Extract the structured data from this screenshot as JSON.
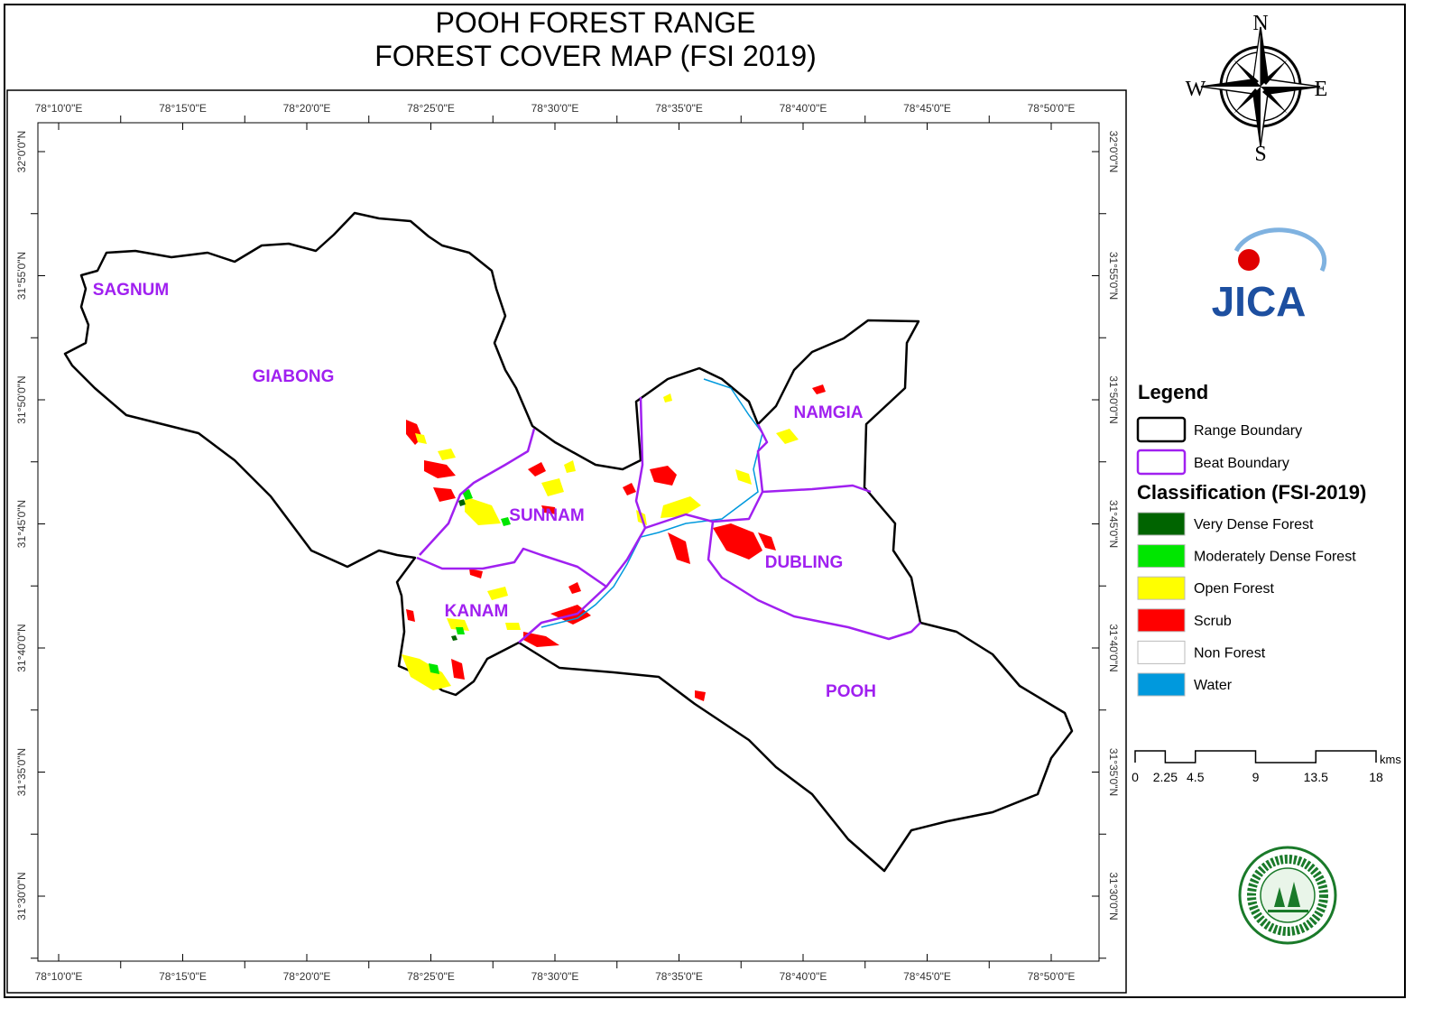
{
  "header": {
    "title_line1": "POOH FOREST RANGE",
    "title_line2": "FOREST COVER MAP (FSI 2019)"
  },
  "compass": {
    "north": "N",
    "south": "S",
    "east": "E",
    "west": "W"
  },
  "map": {
    "longitude_labels": [
      "78°10'0\"E",
      "78°15'0\"E",
      "78°20'0\"E",
      "78°25'0\"E",
      "78°30'0\"E",
      "78°35'0\"E",
      "78°40'0\"E",
      "78°45'0\"E",
      "78°50'0\"E"
    ],
    "latitude_labels": [
      "32°0'0\"N",
      "31°55'0\"N",
      "31°50'0\"N",
      "31°45'0\"N",
      "31°40'0\"N",
      "31°35'0\"N",
      "31°30'0\"N"
    ],
    "beat_labels": [
      "SAGNUM",
      "GIABONG",
      "NAMGIA",
      "SUNNAM",
      "DUBLING",
      "KANAM",
      "POOH"
    ]
  },
  "logo": {
    "text": "JICA"
  },
  "legend": {
    "title": "Legend",
    "boundaries": [
      {
        "label": "Range Boundary",
        "color": "#000000"
      },
      {
        "label": "Beat Boundary",
        "color": "#a020f0"
      }
    ],
    "classification_title": "Classification (FSI-2019)",
    "classes": [
      {
        "label": "Very Dense Forest",
        "color": "#006400"
      },
      {
        "label": "Moderately Dense Forest",
        "color": "#00e600"
      },
      {
        "label": "Open Forest",
        "color": "#ffff00"
      },
      {
        "label": "Scrub",
        "color": "#ff0000"
      },
      {
        "label": "Non Forest",
        "color": "#ffffff"
      },
      {
        "label": "Water",
        "color": "#0099dd"
      }
    ]
  },
  "scale_bar": {
    "unit": "kms",
    "ticks": [
      0,
      2.25,
      4.5,
      9,
      13.5,
      18
    ]
  }
}
